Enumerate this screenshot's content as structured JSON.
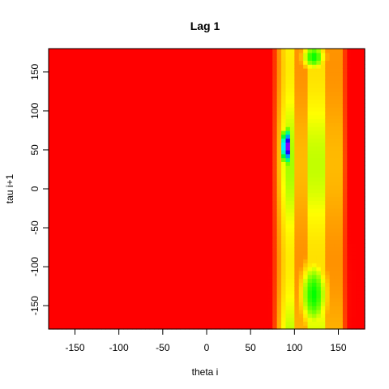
{
  "chart_data": {
    "type": "heatmap",
    "title": "Lag 1",
    "xlabel": "theta i",
    "ylabel": "tau i+1",
    "xlim": [
      -180,
      180
    ],
    "ylim": [
      -180,
      180
    ],
    "x_ticks": [
      -150,
      -100,
      -50,
      0,
      50,
      100,
      150
    ],
    "y_ticks": [
      -150,
      -100,
      -50,
      0,
      50,
      100,
      150
    ],
    "x_tick_labels": [
      "-150",
      "-100",
      "-50",
      "0",
      "50",
      "100",
      "150"
    ],
    "y_tick_labels": [
      "-150",
      "-100",
      "-50",
      "0",
      "50",
      "100",
      "150"
    ],
    "color_scale": [
      "#ff0000",
      "#ff8000",
      "#ffff00",
      "#00ff00",
      "#00ffff",
      "#0000ff",
      "#ff00ff"
    ],
    "background_value": 0,
    "features": [
      {
        "kind": "column_band",
        "x_range": [
          80,
          155
        ],
        "value": 1.3
      },
      {
        "kind": "column_band",
        "x_range": [
          88,
          100
        ],
        "value": 2.1
      },
      {
        "kind": "column_band",
        "x_range": [
          115,
          135
        ],
        "value": 2.0
      },
      {
        "kind": "peak",
        "x": 91,
        "y": 55,
        "sx": 4,
        "sy": 18,
        "value": 6
      },
      {
        "kind": "blob",
        "x": 122,
        "y": -135,
        "sx": 14,
        "sy": 40,
        "value": 3.0
      },
      {
        "kind": "blob",
        "x": 122,
        "y": 170,
        "sx": 12,
        "sy": 15,
        "value": 3.0
      }
    ]
  }
}
